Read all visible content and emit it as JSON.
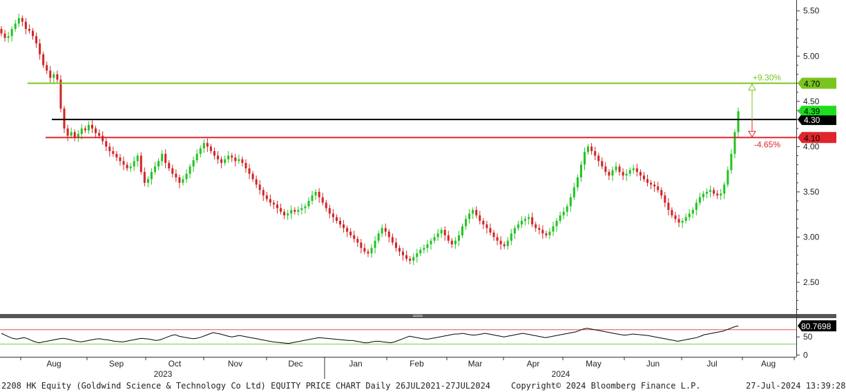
{
  "footer": {
    "title": "2208 HK Equity (Goldwind Science & Technology Co Ltd) EQUITY PRICE CHART  Daily 26JUL2021-27JUL2024",
    "copyright": "Copyright© 2024 Bloomberg Finance L.P.",
    "timestamp": "27-Jul-2024 13:39:28"
  },
  "colors": {
    "up": "#22c422",
    "down": "#d42424",
    "resistance": "#7ac41e",
    "current": "#000000",
    "support": "#e0242c",
    "rsi_line": "#000000",
    "rsi_high": "#e05050",
    "rsi_low": "#6ccf4c"
  },
  "chart_data": [
    {
      "type": "candlestick",
      "title": "",
      "xlabel": "",
      "ylabel": "",
      "ylim": [
        2.15,
        5.62
      ],
      "y_ticks": [
        "5.50",
        "5.00",
        "4.50",
        "4.00",
        "3.50",
        "3.00",
        "2.50"
      ],
      "x_tick_labels": [
        "Aug",
        "Sep",
        "Oct",
        "Nov",
        "Dec",
        "Jan",
        "Feb",
        "Mar",
        "Apr",
        "May",
        "Jun",
        "Jul",
        "Aug"
      ],
      "year_labels": [
        "2023",
        "2024"
      ],
      "axis_side": "right",
      "grid": false,
      "levels": [
        {
          "name": "resistance",
          "value": 4.7,
          "label": "4.70",
          "pct_label": "+9.30%"
        },
        {
          "name": "current_level",
          "value": 4.3,
          "label": "4.30"
        },
        {
          "name": "support",
          "value": 4.1,
          "label": "4.10",
          "pct_label": "-4.65%"
        }
      ],
      "last_price_label": "4.39",
      "closes": [
        5.25,
        5.2,
        5.22,
        5.3,
        5.36,
        5.42,
        5.38,
        5.3,
        5.28,
        5.22,
        5.14,
        5.02,
        4.9,
        4.84,
        4.76,
        4.8,
        4.74,
        4.42,
        4.2,
        4.12,
        4.16,
        4.1,
        4.14,
        4.2,
        4.18,
        4.24,
        4.2,
        4.15,
        4.12,
        4.06,
        4.0,
        3.95,
        3.92,
        3.88,
        3.84,
        3.8,
        3.76,
        3.78,
        3.84,
        3.9,
        3.72,
        3.6,
        3.64,
        3.72,
        3.78,
        3.84,
        3.92,
        3.82,
        3.76,
        3.7,
        3.66,
        3.6,
        3.64,
        3.7,
        3.78,
        3.85,
        3.92,
        3.98,
        4.04,
        4.0,
        3.95,
        3.9,
        3.86,
        3.82,
        3.86,
        3.9,
        3.88,
        3.84,
        3.86,
        3.82,
        3.76,
        3.7,
        3.64,
        3.58,
        3.52,
        3.46,
        3.42,
        3.38,
        3.36,
        3.32,
        3.28,
        3.24,
        3.26,
        3.3,
        3.28,
        3.3,
        3.32,
        3.34,
        3.4,
        3.46,
        3.5,
        3.44,
        3.38,
        3.32,
        3.26,
        3.22,
        3.18,
        3.14,
        3.1,
        3.06,
        3.02,
        2.98,
        2.94,
        2.88,
        2.84,
        2.82,
        2.88,
        2.96,
        3.04,
        3.1,
        3.06,
        3.0,
        2.94,
        2.88,
        2.84,
        2.8,
        2.76,
        2.74,
        2.78,
        2.82,
        2.86,
        2.88,
        2.92,
        2.96,
        3.0,
        3.04,
        3.08,
        3.02,
        2.96,
        2.92,
        2.96,
        3.02,
        3.12,
        3.2,
        3.26,
        3.3,
        3.24,
        3.18,
        3.14,
        3.1,
        3.05,
        3.0,
        2.96,
        2.92,
        2.9,
        2.96,
        3.04,
        3.1,
        3.14,
        3.18,
        3.2,
        3.22,
        3.14,
        3.1,
        3.08,
        3.04,
        3.02,
        3.06,
        3.12,
        3.18,
        3.24,
        3.28,
        3.34,
        3.44,
        3.55,
        3.66,
        3.8,
        3.94,
        4.0,
        3.95,
        3.9,
        3.84,
        3.78,
        3.72,
        3.68,
        3.74,
        3.78,
        3.72,
        3.68,
        3.7,
        3.74,
        3.76,
        3.72,
        3.68,
        3.64,
        3.6,
        3.58,
        3.56,
        3.52,
        3.46,
        3.38,
        3.3,
        3.24,
        3.2,
        3.16,
        3.18,
        3.22,
        3.26,
        3.3,
        3.38,
        3.44,
        3.48,
        3.5,
        3.52,
        3.48,
        3.46,
        3.48,
        3.58,
        3.74,
        3.92,
        4.16,
        4.39
      ],
      "rsi": {
        "label": "80.7698",
        "last": 80.77,
        "ticks": [
          "50",
          "0"
        ],
        "upper": 70,
        "lower": 30,
        "ylim": [
          -5,
          100
        ],
        "values": [
          60,
          55,
          50,
          46,
          44,
          46,
          48,
          45,
          40,
          36,
          34,
          36,
          38,
          40,
          42,
          44,
          46,
          45,
          43,
          40,
          38,
          36,
          38,
          40,
          42,
          44,
          45,
          43,
          42,
          40,
          38,
          37,
          36,
          38,
          40,
          42,
          44,
          46,
          45,
          44,
          42,
          40,
          42,
          46,
          50,
          54,
          56,
          52,
          50,
          48,
          46,
          45,
          47,
          50,
          54,
          58,
          62,
          60,
          58,
          55,
          52,
          50,
          52,
          54,
          52,
          50,
          48,
          46,
          44,
          42,
          40,
          38,
          36,
          35,
          34,
          33,
          32,
          34,
          36,
          38,
          40,
          42,
          44,
          46,
          48,
          47,
          46,
          45,
          44,
          43,
          42,
          41,
          40,
          40,
          38,
          36,
          34,
          34,
          36,
          38,
          38,
          36,
          35,
          34,
          36,
          40,
          44,
          48,
          52,
          50,
          48,
          46,
          44,
          44,
          46,
          48,
          50,
          52,
          54,
          56,
          58,
          58,
          60,
          58,
          56,
          55,
          56,
          58,
          60,
          58,
          56,
          54,
          52,
          50,
          52,
          54,
          56,
          58,
          60,
          58,
          56,
          54,
          52,
          50,
          48,
          50,
          52,
          54,
          56,
          58,
          60,
          62,
          64,
          68,
          72,
          74,
          72,
          70,
          68,
          66,
          64,
          62,
          60,
          58,
          56,
          55,
          56,
          58,
          57,
          56,
          55,
          54,
          52,
          50,
          48,
          46,
          44,
          42,
          40,
          38,
          40,
          42,
          44,
          46,
          48,
          52,
          56,
          58,
          60,
          62,
          64,
          66,
          70,
          74,
          78,
          80.77
        ]
      }
    }
  ]
}
